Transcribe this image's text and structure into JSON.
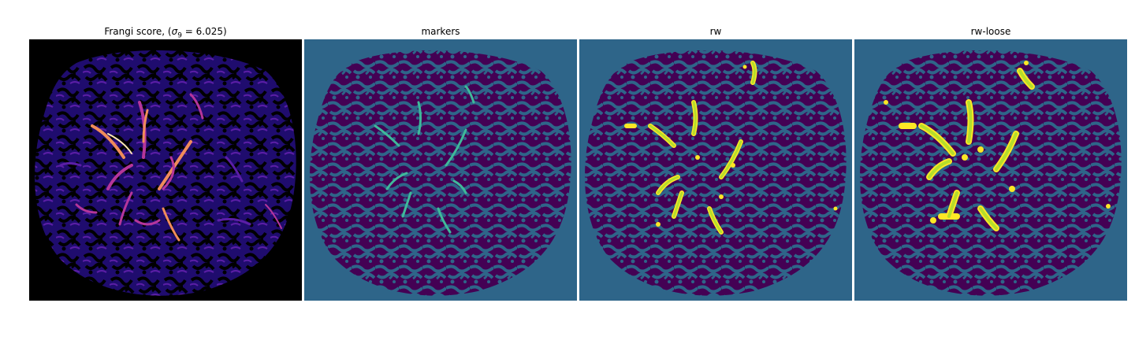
{
  "figure": {
    "panels": [
      {
        "title_prefix": "Frangi score, (",
        "sigma_symbol": "σ",
        "sigma_sub": "9",
        "title_suffix": " = 6.025)",
        "colormap": "magma",
        "background": "#000000"
      },
      {
        "title": "markers",
        "background": "#2e6589"
      },
      {
        "title": "rw",
        "background": "#2e6589"
      },
      {
        "title": "rw-loose",
        "background": "#2e6589"
      }
    ],
    "colors": {
      "dark_purple": "#440154",
      "teal": "#2e6589",
      "marker_green": "#3fb99a",
      "yellow": "#fde725",
      "yellow_green": "#b5de2b",
      "frangi_blue": "#1f0c6e",
      "frangi_purple": "#5b1ea6",
      "frangi_magenta": "#b5369b",
      "frangi_orange": "#f08c5a",
      "frangi_yellow": "#fde9b4"
    }
  }
}
